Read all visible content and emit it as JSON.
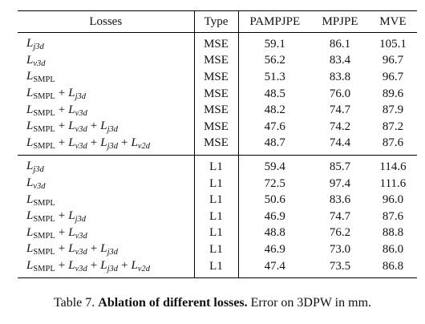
{
  "table": {
    "header": [
      "Losses",
      "Type",
      "PAMPJPE",
      "MPJPE",
      "MVE"
    ],
    "sections": [
      {
        "rows": [
          {
            "loss": [
              {
                "text": "L",
                "sub": "j3d"
              }
            ],
            "type": "MSE",
            "values": [
              "59.1",
              "86.1",
              "105.1"
            ]
          },
          {
            "loss": [
              {
                "text": "L",
                "sub": "v3d"
              }
            ],
            "type": "MSE",
            "values": [
              "56.2",
              "83.4",
              "96.7"
            ]
          },
          {
            "loss": [
              {
                "text": "L",
                "sub": "SMPL"
              }
            ],
            "type": "MSE",
            "values": [
              "51.3",
              "83.8",
              "96.7"
            ]
          },
          {
            "loss": [
              {
                "text": "L",
                "sub": "SMPL"
              },
              {
                "text": "+"
              },
              {
                "text": "L",
                "sub": "j3d"
              }
            ],
            "type": "MSE",
            "values": [
              "48.5",
              "76.0",
              "89.6"
            ]
          },
          {
            "loss": [
              {
                "text": "L",
                "sub": "SMPL"
              },
              {
                "text": "+"
              },
              {
                "text": "L",
                "sub": "v3d"
              }
            ],
            "type": "MSE",
            "values": [
              "48.2",
              "74.7",
              "87.9"
            ]
          },
          {
            "loss": [
              {
                "text": "L",
                "sub": "SMPL"
              },
              {
                "text": "+"
              },
              {
                "text": "L",
                "sub": "v3d"
              },
              {
                "text": "+"
              },
              {
                "text": "L",
                "sub": "j3d"
              }
            ],
            "type": "MSE",
            "values": [
              "47.6",
              "74.2",
              "87.2"
            ],
            "best": true
          },
          {
            "loss": [
              {
                "text": "L",
                "sub": "SMPL"
              },
              {
                "text": "+"
              },
              {
                "text": "L",
                "sub": "v3d"
              },
              {
                "text": "+"
              },
              {
                "text": "L",
                "sub": "j3d"
              },
              {
                "text": "+"
              },
              {
                "text": "L",
                "sub": "v2d"
              }
            ],
            "type": "MSE",
            "values": [
              "48.7",
              "74.4",
              "87.6"
            ]
          }
        ]
      },
      {
        "rows": [
          {
            "loss": [
              {
                "text": "L",
                "sub": "j3d"
              }
            ],
            "type": "L1",
            "values": [
              "59.4",
              "85.7",
              "114.6"
            ]
          },
          {
            "loss": [
              {
                "text": "L",
                "sub": "v3d"
              }
            ],
            "type": "L1",
            "values": [
              "72.5",
              "97.4",
              "111.6"
            ]
          },
          {
            "loss": [
              {
                "text": "L",
                "sub": "SMPL"
              }
            ],
            "type": "L1",
            "values": [
              "50.6",
              "83.6",
              "96.0"
            ]
          },
          {
            "loss": [
              {
                "text": "L",
                "sub": "SMPL"
              },
              {
                "text": "+"
              },
              {
                "text": "L",
                "sub": "j3d"
              }
            ],
            "type": "L1",
            "values": [
              "46.9",
              "74.7",
              "87.6"
            ]
          },
          {
            "loss": [
              {
                "text": "L",
                "sub": "SMPL"
              },
              {
                "text": "+"
              },
              {
                "text": "L",
                "sub": "v3d"
              }
            ],
            "type": "L1",
            "values": [
              "48.8",
              "76.2",
              "88.8"
            ]
          },
          {
            "loss": [
              {
                "text": "L",
                "sub": "SMPL"
              },
              {
                "text": "+"
              },
              {
                "text": "L",
                "sub": "v3d"
              },
              {
                "text": "+"
              },
              {
                "text": "L",
                "sub": "j3d"
              }
            ],
            "type": "L1",
            "values": [
              "46.9",
              "73.0",
              "86.0"
            ],
            "best": true
          },
          {
            "loss": [
              {
                "text": "L",
                "sub": "SMPL"
              },
              {
                "text": "+"
              },
              {
                "text": "L",
                "sub": "v3d"
              },
              {
                "text": "+"
              },
              {
                "text": "L",
                "sub": "j3d"
              },
              {
                "text": "+"
              },
              {
                "text": "L",
                "sub": "v2d"
              }
            ],
            "type": "L1",
            "values": [
              "47.4",
              "73.5",
              "86.8"
            ]
          }
        ]
      }
    ]
  },
  "caption": {
    "label": "Table 7.",
    "bold": "Ablation of different losses.",
    "text": "Error on 3DPW in mm."
  }
}
